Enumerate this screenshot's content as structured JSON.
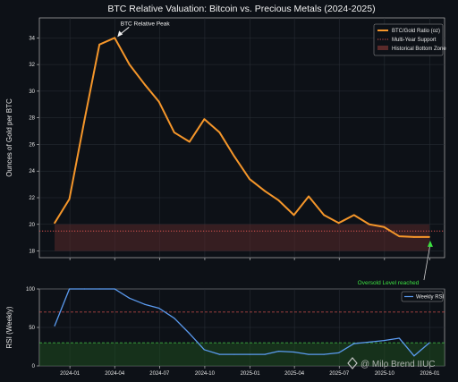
{
  "chart_data": [
    {
      "type": "line",
      "title": "BTC Relative Valuation: Bitcoin vs. Precious Metals (2024-2025)",
      "ylabel": "Ounces of Gold per BTC",
      "ylim": [
        17.5,
        35.5
      ],
      "xlim": [
        "2023-10-31",
        "2026-01-31"
      ],
      "yticks": [
        18,
        20,
        22,
        24,
        26,
        28,
        30,
        32,
        34
      ],
      "grid": true,
      "legend_position": "top-right",
      "series": [
        {
          "name": "BTC/Gold Ratio (oz)",
          "color": "#f5962a",
          "points": [
            [
              "2023-12-01",
              20.1
            ],
            [
              "2023-12-31",
              21.9
            ],
            [
              "2024-01-31",
              27.9
            ],
            [
              "2024-03-01",
              33.5
            ],
            [
              "2024-04-01",
              34.0
            ],
            [
              "2024-05-01",
              32.0
            ],
            [
              "2024-06-01",
              30.5
            ],
            [
              "2024-06-30",
              29.2
            ],
            [
              "2024-07-31",
              26.9
            ],
            [
              "2024-08-31",
              26.2
            ],
            [
              "2024-09-30",
              27.9
            ],
            [
              "2024-10-31",
              26.9
            ],
            [
              "2024-11-30",
              25.1
            ],
            [
              "2024-12-31",
              23.4
            ],
            [
              "2025-01-31",
              22.5
            ],
            [
              "2025-02-28",
              21.8
            ],
            [
              "2025-03-31",
              20.7
            ],
            [
              "2025-04-30",
              22.1
            ],
            [
              "2025-05-31",
              20.7
            ],
            [
              "2025-06-30",
              20.1
            ],
            [
              "2025-07-31",
              20.7
            ],
            [
              "2025-08-31",
              20.0
            ],
            [
              "2025-09-30",
              19.8
            ],
            [
              "2025-10-31",
              19.1
            ],
            [
              "2025-11-30",
              19.05
            ],
            [
              "2025-12-31",
              19.05
            ]
          ]
        }
      ],
      "reference_lines": [
        {
          "name": "Multi-Year Support",
          "y": 19.5,
          "color": "#d9534f",
          "style": "dotted"
        }
      ],
      "shaded_bands": [
        {
          "name": "Historical Bottom Zone",
          "y_range": [
            18,
            20
          ],
          "color": "#5a2a2a"
        }
      ],
      "annotations": [
        {
          "text": "BTC Relative Peak",
          "at": [
            "2024-04-01",
            34.0
          ],
          "color": "#f0f0f0"
        },
        {
          "text": "Oversold Level reached",
          "at": [
            "2025-12-31",
            19.05
          ],
          "color": "#3ce040"
        }
      ]
    },
    {
      "type": "line",
      "ylabel": "RSI (Weekly)",
      "ylim": [
        0,
        100
      ],
      "yticks": [
        0,
        50,
        100
      ],
      "xticks": [
        "2024-01",
        "2024-04",
        "2024-07",
        "2024-10",
        "2025-01",
        "2025-04",
        "2025-07",
        "2025-10",
        "2026-01"
      ],
      "grid": true,
      "legend_position": "top-right",
      "series": [
        {
          "name": "Weekly RSI",
          "color": "#5b9bf0",
          "points": [
            [
              "2023-12-01",
              52
            ],
            [
              "2023-12-31",
              100
            ],
            [
              "2024-01-31",
              100
            ],
            [
              "2024-03-01",
              100
            ],
            [
              "2024-04-01",
              100
            ],
            [
              "2024-05-01",
              88
            ],
            [
              "2024-06-01",
              80
            ],
            [
              "2024-06-30",
              75
            ],
            [
              "2024-07-31",
              62
            ],
            [
              "2024-08-31",
              42
            ],
            [
              "2024-09-30",
              21
            ],
            [
              "2024-10-31",
              15
            ],
            [
              "2024-11-30",
              15
            ],
            [
              "2024-12-31",
              15
            ],
            [
              "2025-01-31",
              15
            ],
            [
              "2025-02-28",
              19
            ],
            [
              "2025-03-31",
              18
            ],
            [
              "2025-04-30",
              15
            ],
            [
              "2025-05-31",
              15
            ],
            [
              "2025-06-30",
              17
            ],
            [
              "2025-07-31",
              29
            ],
            [
              "2025-08-31",
              31
            ],
            [
              "2025-09-30",
              33
            ],
            [
              "2025-10-31",
              36
            ],
            [
              "2025-11-30",
              13
            ],
            [
              "2025-12-31",
              30
            ]
          ]
        }
      ],
      "reference_lines": [
        {
          "y": 70,
          "color": "#d9534f",
          "style": "dashed"
        },
        {
          "y": 30,
          "color": "#3cb043",
          "style": "dashed"
        }
      ],
      "shaded_bands": [
        {
          "y_range": [
            0,
            30
          ],
          "color": "#1f4d1f"
        }
      ]
    }
  ],
  "watermark": {
    "text": "@ Milo Brend IIUC"
  }
}
